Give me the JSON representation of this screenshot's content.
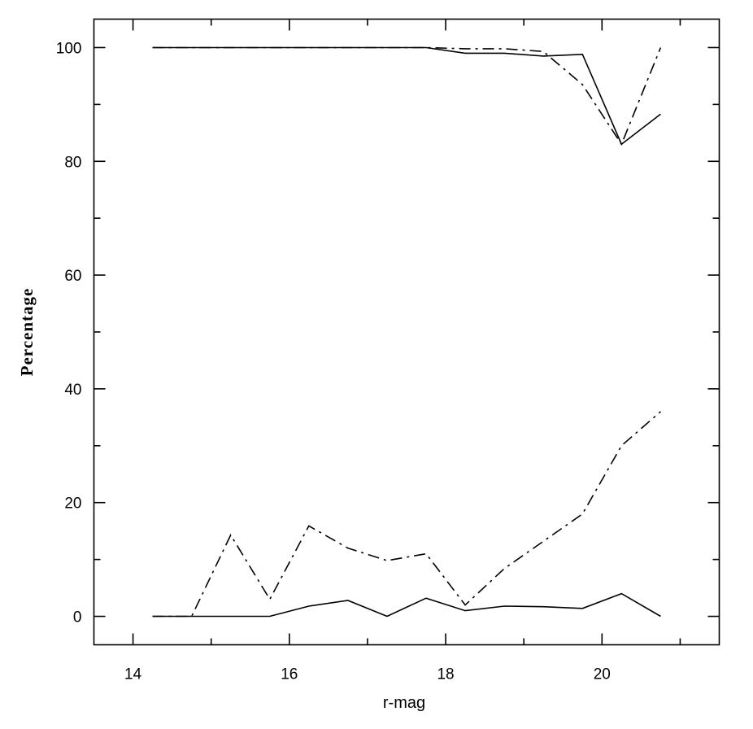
{
  "chart_data": {
    "type": "line",
    "title": "",
    "xlabel": "r-mag",
    "ylabel": "Percentage",
    "xlim": [
      13.5,
      21.5
    ],
    "ylim": [
      -5,
      105
    ],
    "xticks": [
      14,
      16,
      18,
      20
    ],
    "yticks": [
      0,
      20,
      40,
      60,
      80,
      100
    ],
    "grid": false,
    "legend": "none",
    "series": [
      {
        "style": "solid",
        "x": [
          14.25,
          14.75,
          15.25,
          15.75,
          16.25,
          16.75,
          17.25,
          17.75,
          18.25,
          18.75,
          19.25,
          19.75,
          20.25,
          20.75
        ],
        "y": [
          100,
          100,
          100,
          100,
          100,
          100,
          100,
          100,
          99,
          99,
          98.5,
          98.8,
          83,
          88.3
        ]
      },
      {
        "style": "dashdot",
        "x": [
          14.25,
          14.75,
          15.25,
          15.75,
          16.25,
          16.75,
          17.25,
          17.75,
          18.25,
          18.75,
          19.25,
          19.75,
          20.25,
          20.75
        ],
        "y": [
          100,
          100,
          100,
          100,
          100,
          100,
          100,
          100,
          99.8,
          99.8,
          99.3,
          93.5,
          83,
          100
        ]
      },
      {
        "style": "solid",
        "x": [
          14.25,
          14.75,
          15.25,
          15.75,
          16.25,
          16.75,
          17.25,
          17.75,
          18.25,
          18.75,
          19.25,
          19.75,
          20.25,
          20.75
        ],
        "y": [
          0,
          0,
          0,
          0,
          1.8,
          2.8,
          0,
          3.2,
          1,
          1.8,
          1.7,
          1.4,
          4,
          0
        ]
      },
      {
        "style": "dashdot",
        "x": [
          14.25,
          14.75,
          15.25,
          15.75,
          16.25,
          16.75,
          17.25,
          17.75,
          18.25,
          18.75,
          19.25,
          19.75,
          20.25,
          20.75
        ],
        "y": [
          0,
          0,
          14.3,
          3,
          15.9,
          12,
          9.8,
          11,
          2,
          8.4,
          13.2,
          18,
          30,
          36
        ]
      }
    ]
  }
}
